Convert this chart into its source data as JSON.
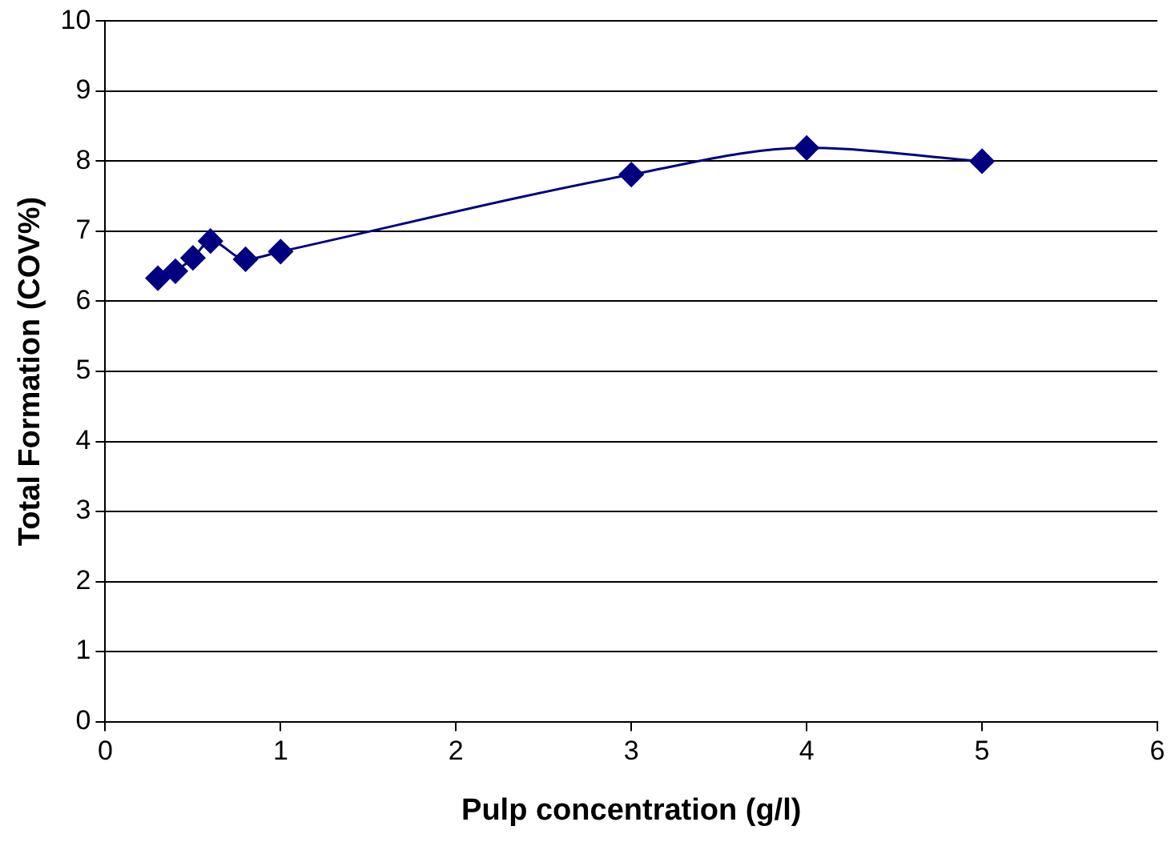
{
  "chart_data": {
    "type": "line",
    "xlabel": "Pulp concentration (g/l)",
    "ylabel": "Total Formation (COV%)",
    "x": [
      0.3,
      0.4,
      0.5,
      0.6,
      0.8,
      1,
      3,
      4,
      5
    ],
    "series": [
      {
        "color": "#000080",
        "values": [
          6.33,
          6.43,
          6.62,
          6.86,
          6.6,
          6.71,
          7.81,
          8.19,
          8.0
        ]
      }
    ],
    "xlim": [
      0,
      6
    ],
    "xticks": [
      0,
      1,
      2,
      3,
      4,
      5,
      6
    ],
    "ylim": [
      0,
      10
    ],
    "yticks": [
      0,
      1,
      2,
      3,
      4,
      5,
      6,
      7,
      8,
      9,
      10
    ],
    "grid": "y",
    "legend": false,
    "marker": "diamond",
    "line_style": "solid"
  }
}
